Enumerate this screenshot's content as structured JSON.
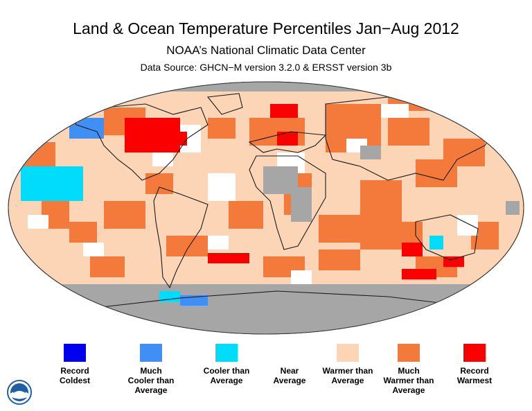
{
  "title": "Land & Ocean Temperature Percentiles Jan−Aug 2012",
  "subtitle": "NOAA’s National Climatic Data Center",
  "source": "Data Source: GHCN−M version 3.2.0 & ERSST version 3b",
  "colors": {
    "record_coldest": "#0000f0",
    "much_cooler": "#3f8ff5",
    "cooler": "#00dcfa",
    "near": "#ffffff",
    "warmer": "#fcd4b6",
    "much_warmer": "#f47a3c",
    "record_warmest": "#fb0000",
    "no_data": "#a6a6a6"
  },
  "legend": [
    {
      "label": "Record\nColdest",
      "color": "#0000f0"
    },
    {
      "label": "Much\nCooler than\nAverage",
      "color": "#3f8ff5"
    },
    {
      "label": "Cooler than\nAverage",
      "color": "#00dcfa"
    },
    {
      "label": "Near\nAverage",
      "color": "#ffffff"
    },
    {
      "label": "Warmer than\nAverage",
      "color": "#fcd4b6"
    },
    {
      "label": "Much\nWarmer than\nAverage",
      "color": "#f47a3c"
    },
    {
      "label": "Record\nWarmest",
      "color": "#fb0000"
    }
  ],
  "logo_icon": "noaa-logo-icon"
}
